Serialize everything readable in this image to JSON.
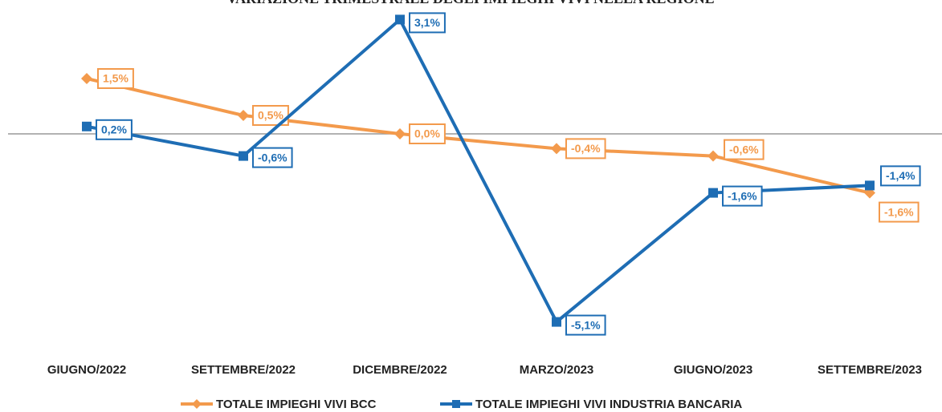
{
  "chart_data": {
    "type": "line",
    "title": "VARIAZIONE TRIMESTRALE DEGLI IMPIEGHI VIVI NELLA REGIONE",
    "categories": [
      "GIUGNO/2022",
      "SETTEMBRE/2022",
      "DICEMBRE/2022",
      "MARZO/2023",
      "GIUGNO/2023",
      "SETTEMBRE/2023"
    ],
    "series": [
      {
        "name": "TOTALE IMPIEGHI VIVI BCC",
        "color": "#F39A4C",
        "marker": "diamond",
        "values": [
          1.5,
          0.5,
          0.0,
          -0.4,
          -0.6,
          -1.6
        ],
        "value_labels": [
          "1,5%",
          "0,5%",
          "0,0%",
          "-0,4%",
          "-0,6%",
          "-1,6%"
        ]
      },
      {
        "name": "TOTALE IMPIEGHI VIVI INDUSTRIA BANCARIA",
        "color": "#1E6DB4",
        "marker": "square",
        "values": [
          0.2,
          -0.6,
          3.1,
          -5.1,
          -1.6,
          -1.4
        ],
        "value_labels": [
          "0,2%",
          "-0,6%",
          "3,1%",
          "-5,1%",
          "-1,6%",
          "-1,4%"
        ]
      }
    ]
  }
}
